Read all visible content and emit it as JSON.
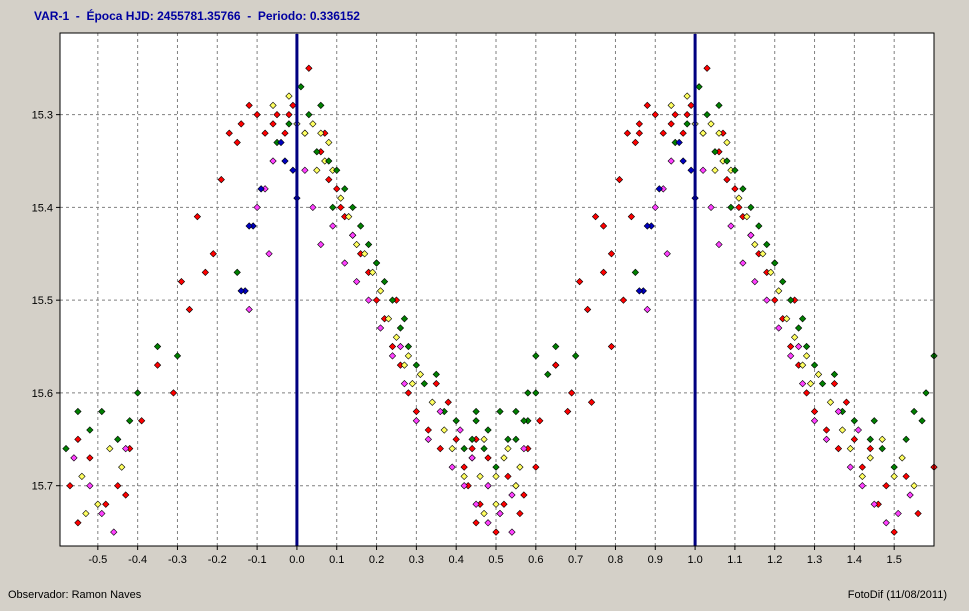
{
  "header": {
    "title": "VAR-1  -  Época HJD: 2455781.35766  -  Periodo: 0.336152"
  },
  "footer": {
    "observer": "Observador: Ramon Naves",
    "software": "FotoDif (11/08/2011)"
  },
  "colors": {
    "background": "#d4d0c8",
    "plot_background": "#ffffff",
    "grid": "#808080",
    "marker_lines": "#000080",
    "title": "#0000a0",
    "series": [
      "#ff0000",
      "#ffff60",
      "#008000",
      "#ff40ff",
      "#0000c0"
    ]
  },
  "chart_data": {
    "type": "scatter",
    "title": "VAR-1  -  Época HJD: 2455781.35766  -  Periodo: 0.336152",
    "xlabel": "",
    "ylabel": "",
    "xlim": [
      -0.595,
      1.6
    ],
    "ylim": [
      15.765,
      15.212
    ],
    "y_inverted": true,
    "grid": true,
    "x_ticks": [
      "-0.5",
      "-0.4",
      "-0.3",
      "-0.2",
      "-0.1",
      "0.0",
      "0.1",
      "0.2",
      "0.3",
      "0.4",
      "0.5",
      "0.6",
      "0.7",
      "0.8",
      "0.9",
      "1.0",
      "1.1",
      "1.2",
      "1.3",
      "1.4",
      "1.5"
    ],
    "y_ticks": [
      "15.3",
      "15.4",
      "15.5",
      "15.6",
      "15.7"
    ],
    "vertical_markers": [
      0.0,
      1.0
    ],
    "phase_repeat": 1.0,
    "series": [
      {
        "color": "#ff0000",
        "points": [
          [
            -0.01,
            15.29
          ],
          [
            -0.02,
            15.3
          ],
          [
            -0.03,
            15.32
          ],
          [
            -0.05,
            15.3
          ],
          [
            -0.06,
            15.31
          ],
          [
            -0.08,
            15.32
          ],
          [
            -0.1,
            15.3
          ],
          [
            -0.12,
            15.29
          ],
          [
            -0.14,
            15.31
          ],
          [
            -0.15,
            15.33
          ],
          [
            -0.17,
            15.32
          ],
          [
            -0.19,
            15.37
          ],
          [
            -0.21,
            15.45
          ],
          [
            -0.23,
            15.47
          ],
          [
            -0.25,
            15.41
          ],
          [
            -0.27,
            15.51
          ],
          [
            -0.29,
            15.48
          ],
          [
            -0.31,
            15.6
          ],
          [
            -0.35,
            15.57
          ],
          [
            -0.39,
            15.63
          ],
          [
            -0.42,
            15.66
          ],
          [
            -0.45,
            15.7
          ],
          [
            -0.48,
            15.72
          ],
          [
            -0.52,
            15.67
          ],
          [
            -0.55,
            15.65
          ],
          [
            -0.57,
            15.7
          ],
          [
            0.02,
            15.32
          ],
          [
            0.03,
            15.25
          ],
          [
            0.06,
            15.34
          ],
          [
            0.08,
            15.37
          ],
          [
            0.1,
            15.38
          ],
          [
            0.12,
            15.41
          ],
          [
            0.14,
            15.43
          ],
          [
            0.16,
            15.45
          ],
          [
            0.18,
            15.47
          ],
          [
            0.2,
            15.5
          ],
          [
            0.22,
            15.52
          ],
          [
            0.24,
            15.55
          ],
          [
            0.26,
            15.57
          ],
          [
            0.28,
            15.6
          ],
          [
            0.3,
            15.62
          ],
          [
            0.33,
            15.64
          ],
          [
            0.36,
            15.66
          ],
          [
            0.38,
            15.61
          ],
          [
            0.4,
            15.65
          ],
          [
            0.42,
            15.68
          ],
          [
            0.44,
            15.66
          ],
          [
            0.46,
            15.72
          ],
          [
            0.48,
            15.7
          ],
          [
            0.5,
            15.75
          ],
          [
            0.53,
            15.69
          ],
          [
            0.56,
            15.73
          ],
          [
            0.6,
            15.68
          ],
          [
            0.65,
            15.57
          ],
          [
            0.68,
            15.62
          ],
          [
            0.74,
            15.61
          ],
          [
            0.77,
            15.42
          ],
          [
            0.79,
            15.55
          ],
          [
            0.82,
            15.5
          ],
          [
            0.84,
            15.41
          ],
          [
            0.86,
            15.32
          ],
          [
            -0.55,
            15.74
          ],
          [
            -0.43,
            15.71
          ],
          [
            0.07,
            15.32
          ],
          [
            0.11,
            15.4
          ],
          [
            0.25,
            15.5
          ],
          [
            0.35,
            15.59
          ]
        ]
      },
      {
        "color": "#ffff60",
        "points": [
          [
            -0.02,
            15.28
          ],
          [
            0.0,
            15.31
          ],
          [
            0.02,
            15.32
          ],
          [
            0.04,
            15.31
          ],
          [
            0.05,
            15.36
          ],
          [
            0.06,
            15.32
          ],
          [
            0.07,
            15.35
          ],
          [
            0.09,
            15.36
          ],
          [
            0.11,
            15.39
          ],
          [
            0.13,
            15.41
          ],
          [
            0.15,
            15.44
          ],
          [
            0.17,
            15.45
          ],
          [
            0.19,
            15.47
          ],
          [
            0.21,
            15.49
          ],
          [
            0.23,
            15.52
          ],
          [
            0.25,
            15.54
          ],
          [
            0.27,
            15.57
          ],
          [
            0.29,
            15.59
          ],
          [
            0.31,
            15.58
          ],
          [
            0.34,
            15.61
          ],
          [
            0.37,
            15.64
          ],
          [
            0.39,
            15.66
          ],
          [
            0.42,
            15.69
          ],
          [
            0.44,
            15.67
          ],
          [
            0.47,
            15.65
          ],
          [
            0.5,
            15.69
          ],
          [
            0.52,
            15.67
          ],
          [
            0.55,
            15.7
          ],
          [
            -0.47,
            15.66
          ],
          [
            -0.5,
            15.72
          ],
          [
            -0.54,
            15.69
          ],
          [
            -0.44,
            15.68
          ],
          [
            -0.06,
            15.29
          ],
          [
            0.08,
            15.33
          ],
          [
            0.2,
            15.46
          ],
          [
            0.28,
            15.56
          ],
          [
            -0.53,
            15.73
          ]
        ]
      },
      {
        "color": "#008000",
        "points": [
          [
            0.03,
            15.3
          ],
          [
            0.05,
            15.34
          ],
          [
            0.06,
            15.29
          ],
          [
            0.08,
            15.35
          ],
          [
            0.1,
            15.36
          ],
          [
            0.12,
            15.38
          ],
          [
            0.14,
            15.4
          ],
          [
            0.16,
            15.42
          ],
          [
            0.18,
            15.44
          ],
          [
            0.2,
            15.46
          ],
          [
            0.22,
            15.48
          ],
          [
            0.24,
            15.5
          ],
          [
            0.26,
            15.53
          ],
          [
            0.28,
            15.55
          ],
          [
            0.3,
            15.57
          ],
          [
            0.32,
            15.59
          ],
          [
            0.35,
            15.58
          ],
          [
            0.37,
            15.62
          ],
          [
            0.4,
            15.63
          ],
          [
            0.44,
            15.65
          ],
          [
            0.47,
            15.66
          ],
          [
            0.5,
            15.68
          ],
          [
            0.53,
            15.65
          ],
          [
            0.55,
            15.62
          ],
          [
            0.58,
            15.6
          ],
          [
            0.6,
            15.56
          ],
          [
            0.63,
            15.58
          ],
          [
            -0.02,
            15.31
          ],
          [
            -0.05,
            15.33
          ],
          [
            -0.15,
            15.47
          ],
          [
            -0.3,
            15.56
          ],
          [
            -0.35,
            15.55
          ],
          [
            -0.4,
            15.6
          ],
          [
            -0.42,
            15.63
          ],
          [
            -0.45,
            15.65
          ],
          [
            -0.49,
            15.62
          ],
          [
            -0.52,
            15.64
          ],
          [
            -0.55,
            15.62
          ],
          [
            -0.58,
            15.66
          ],
          [
            0.01,
            15.27
          ],
          [
            0.09,
            15.4
          ],
          [
            0.27,
            15.52
          ],
          [
            0.45,
            15.63
          ],
          [
            0.57,
            15.63
          ]
        ]
      },
      {
        "color": "#ff40ff",
        "points": [
          [
            -0.06,
            15.35
          ],
          [
            -0.08,
            15.38
          ],
          [
            -0.1,
            15.4
          ],
          [
            -0.07,
            15.45
          ],
          [
            -0.12,
            15.51
          ],
          [
            0.02,
            15.36
          ],
          [
            0.04,
            15.4
          ],
          [
            0.06,
            15.44
          ],
          [
            0.09,
            15.42
          ],
          [
            0.12,
            15.46
          ],
          [
            0.15,
            15.48
          ],
          [
            0.18,
            15.5
          ],
          [
            0.21,
            15.53
          ],
          [
            0.24,
            15.56
          ],
          [
            0.27,
            15.59
          ],
          [
            0.3,
            15.63
          ],
          [
            0.33,
            15.65
          ],
          [
            0.36,
            15.62
          ],
          [
            0.39,
            15.68
          ],
          [
            0.42,
            15.7
          ],
          [
            0.45,
            15.72
          ],
          [
            0.48,
            15.74
          ],
          [
            0.51,
            15.73
          ],
          [
            0.54,
            15.71
          ],
          [
            -0.43,
            15.66
          ],
          [
            -0.46,
            15.75
          ],
          [
            -0.49,
            15.73
          ],
          [
            -0.52,
            15.7
          ],
          [
            -0.56,
            15.67
          ],
          [
            0.14,
            15.43
          ],
          [
            0.26,
            15.55
          ],
          [
            0.41,
            15.64
          ]
        ]
      },
      {
        "color": "#0000c0",
        "points": [
          [
            -0.01,
            15.36
          ],
          [
            -0.03,
            15.35
          ],
          [
            -0.09,
            15.38
          ],
          [
            -0.11,
            15.42
          ],
          [
            -0.12,
            15.42
          ],
          [
            -0.13,
            15.49
          ],
          [
            -0.14,
            15.49
          ],
          [
            0.0,
            15.39
          ],
          [
            -0.04,
            15.33
          ]
        ]
      }
    ]
  }
}
